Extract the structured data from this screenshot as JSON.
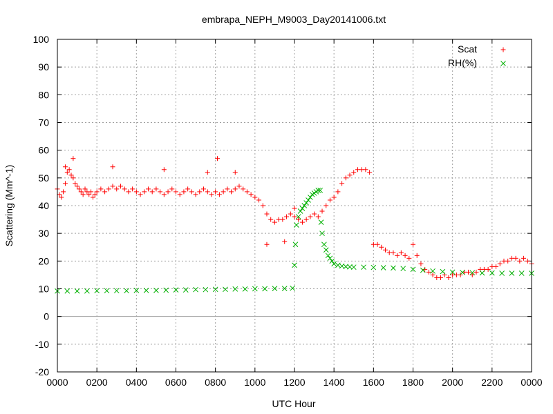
{
  "chart_data": {
    "type": "scatter",
    "title": "embrapa_NEPH_M9003_Day20141006.txt",
    "xlabel": "UTC Hour",
    "ylabel": "Scattering (Mm^-1)",
    "xlim": [
      0,
      24
    ],
    "ylim": [
      -20,
      100
    ],
    "grid": true,
    "legend_position": "top-right",
    "x_ticks": [
      0,
      2,
      4,
      6,
      8,
      10,
      12,
      14,
      16,
      18,
      20,
      22,
      24
    ],
    "x_tick_labels": [
      "0000",
      "0200",
      "0400",
      "0600",
      "0800",
      "1000",
      "1200",
      "1400",
      "1600",
      "1800",
      "2000",
      "2200",
      "0000"
    ],
    "y_ticks": [
      -20,
      -10,
      0,
      10,
      20,
      30,
      40,
      50,
      60,
      70,
      80,
      90,
      100
    ],
    "series": [
      {
        "name": "Scat",
        "color": "#ff0000",
        "marker": "plus",
        "x": [
          0.0,
          0.1,
          0.2,
          0.3,
          0.4,
          0.5,
          0.6,
          0.7,
          0.8,
          0.9,
          1.0,
          1.1,
          1.2,
          1.3,
          1.4,
          1.5,
          1.6,
          1.7,
          1.8,
          1.9,
          2.0,
          2.2,
          2.4,
          2.6,
          2.8,
          3.0,
          3.2,
          3.4,
          3.6,
          3.8,
          4.0,
          4.2,
          4.4,
          4.6,
          4.8,
          5.0,
          5.2,
          5.4,
          5.6,
          5.8,
          6.0,
          6.2,
          6.4,
          6.6,
          6.8,
          7.0,
          7.2,
          7.4,
          7.6,
          7.8,
          8.0,
          8.2,
          8.4,
          8.6,
          8.8,
          9.0,
          9.2,
          9.4,
          9.6,
          9.8,
          10.0,
          10.2,
          10.4,
          10.6,
          10.8,
          11.0,
          11.2,
          11.4,
          11.6,
          11.8,
          12.0,
          12.2,
          12.4,
          12.6,
          12.8,
          13.0,
          13.2,
          13.4,
          13.6,
          13.8,
          14.0,
          14.2,
          14.4,
          14.6,
          14.8,
          15.0,
          15.2,
          15.4,
          15.6,
          15.8,
          16.0,
          16.2,
          16.4,
          16.6,
          16.8,
          17.0,
          17.2,
          17.4,
          17.6,
          17.8,
          18.0,
          18.2,
          18.4,
          18.6,
          18.8,
          19.0,
          19.2,
          19.4,
          19.6,
          19.8,
          20.0,
          20.2,
          20.4,
          20.6,
          20.8,
          21.0,
          21.2,
          21.4,
          21.6,
          21.8,
          22.0,
          22.2,
          22.4,
          22.6,
          22.8,
          23.0,
          23.2,
          23.4,
          23.6,
          23.8,
          24.0,
          0.4,
          0.8,
          2.8,
          5.4,
          7.6,
          8.1,
          9.0,
          10.6,
          11.5,
          12.0
        ],
        "y": [
          46,
          44,
          43,
          45,
          48,
          52,
          53,
          51,
          50,
          48,
          47,
          46,
          45,
          44,
          46,
          45,
          44,
          45,
          43,
          44,
          45,
          46,
          45,
          46,
          47,
          46,
          47,
          46,
          45,
          46,
          45,
          44,
          45,
          46,
          45,
          46,
          45,
          44,
          45,
          46,
          45,
          44,
          45,
          46,
          45,
          44,
          45,
          46,
          45,
          44,
          45,
          44,
          45,
          46,
          45,
          46,
          47,
          46,
          45,
          44,
          43,
          42,
          40,
          37,
          35,
          34,
          35,
          35,
          36,
          37,
          36,
          35,
          34,
          35,
          36,
          37,
          36,
          38,
          40,
          42,
          43,
          45,
          48,
          50,
          51,
          52,
          53,
          53,
          53,
          52,
          26,
          26,
          25,
          24,
          23,
          23,
          22,
          23,
          22,
          21,
          26,
          22,
          19,
          17,
          16,
          15,
          14,
          14,
          15,
          14,
          15,
          15,
          15,
          16,
          16,
          15,
          16,
          17,
          17,
          17,
          18,
          18,
          19,
          20,
          20,
          21,
          21,
          20,
          21,
          20,
          19,
          54,
          57,
          54,
          53,
          52,
          57,
          52,
          26,
          27,
          39
        ]
      },
      {
        "name": "RH(%)",
        "color": "#00b000",
        "marker": "cross",
        "x": [
          0.0,
          0.5,
          1.0,
          1.5,
          2.0,
          2.5,
          3.0,
          3.5,
          4.0,
          4.5,
          5.0,
          5.5,
          6.0,
          6.5,
          7.0,
          7.5,
          8.0,
          8.5,
          9.0,
          9.5,
          10.0,
          10.5,
          11.0,
          11.5,
          11.9,
          12.0,
          12.05,
          12.1,
          12.2,
          12.3,
          12.4,
          12.5,
          12.6,
          12.7,
          12.8,
          12.9,
          13.0,
          13.1,
          13.2,
          13.3,
          13.35,
          13.4,
          13.5,
          13.6,
          13.7,
          13.8,
          13.9,
          14.0,
          14.2,
          14.4,
          14.6,
          14.8,
          15.0,
          15.5,
          16.0,
          16.5,
          17.0,
          17.5,
          18.0,
          18.5,
          19.0,
          19.5,
          20.0,
          20.5,
          21.0,
          21.5,
          22.0,
          22.5,
          23.0,
          23.5,
          24.0
        ],
        "y": [
          9.2,
          9.2,
          9.2,
          9.2,
          9.3,
          9.3,
          9.3,
          9.3,
          9.4,
          9.4,
          9.4,
          9.5,
          9.6,
          9.6,
          9.7,
          9.7,
          9.8,
          9.8,
          9.9,
          9.9,
          10.0,
          10.0,
          10.1,
          10.1,
          10.2,
          18.5,
          26,
          33,
          36,
          38,
          39,
          40,
          41,
          42,
          43,
          44,
          44.5,
          45,
          45.5,
          45.5,
          34,
          30,
          26,
          24,
          22,
          21,
          20,
          19,
          18.5,
          18.2,
          18.0,
          17.9,
          17.8,
          17.8,
          17.7,
          17.6,
          17.5,
          17.3,
          17.0,
          16.7,
          16.4,
          16.2,
          16.0,
          15.9,
          15.8,
          15.7,
          15.7,
          15.6,
          15.6,
          15.6,
          15.6
        ]
      }
    ]
  }
}
